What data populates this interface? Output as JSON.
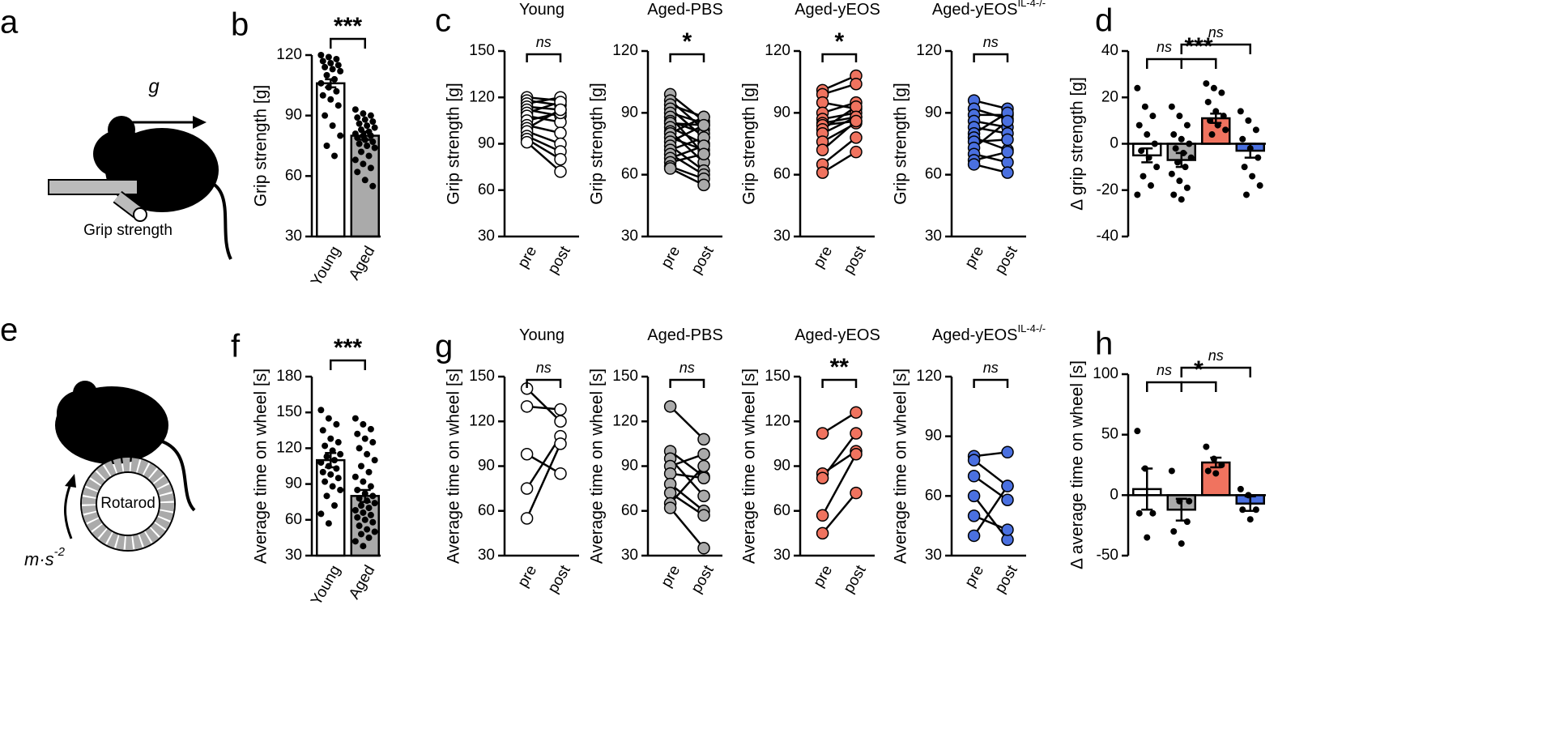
{
  "illustrations": {
    "grip": {
      "panel": "a",
      "caption": "Grip strength",
      "force_label": "g"
    },
    "rotarod": {
      "panel": "e",
      "device_label": "Rotarod",
      "speed_label": "m·s",
      "speed_exponent": "-2"
    }
  },
  "chart_data": [
    {
      "type": "bar",
      "panel": "b",
      "ylabel": "Grip strength [g]",
      "categories": [
        "Young",
        "Aged"
      ],
      "values": [
        106,
        80
      ],
      "errors": [
        2,
        2
      ],
      "colors": [
        "#ffffff",
        "#aaaaaa"
      ],
      "points": [
        [
          120,
          119,
          118,
          117,
          116,
          115,
          114,
          113,
          112,
          110,
          108,
          106,
          104,
          102,
          100,
          98,
          95,
          90,
          85,
          80,
          75,
          70
        ],
        [
          93,
          91,
          90,
          89,
          88,
          87,
          86,
          85,
          84,
          83,
          82,
          81,
          80,
          80,
          79,
          78,
          77,
          76,
          75,
          74,
          72,
          70,
          68,
          66,
          64,
          62,
          58,
          55
        ]
      ],
      "ylim": [
        30,
        120
      ],
      "yticks": [
        30,
        60,
        90,
        120
      ],
      "significance": [
        {
          "groups": [
            0,
            1
          ],
          "label": "***"
        }
      ]
    },
    {
      "type": "paired",
      "panel": "c",
      "title": "Young",
      "ylabel": "Grip strength [g]",
      "categories": [
        "pre",
        "post"
      ],
      "color": "#ffffff",
      "values": [
        [
          120,
          118
        ],
        [
          118,
          115
        ],
        [
          116,
          120
        ],
        [
          114,
          112
        ],
        [
          112,
          108
        ],
        [
          110,
          117
        ],
        [
          108,
          104
        ],
        [
          105,
          110
        ],
        [
          102,
          97
        ],
        [
          100,
          112
        ],
        [
          98,
          90
        ],
        [
          95,
          85
        ],
        [
          93,
          80
        ],
        [
          91,
          72
        ]
      ],
      "ylim": [
        30,
        150
      ],
      "yticks": [
        30,
        60,
        90,
        120,
        150
      ],
      "significance": [
        {
          "groups": [
            0,
            1
          ],
          "label": "ns"
        }
      ]
    },
    {
      "type": "paired",
      "title": "Aged-PBS",
      "ylabel": "Grip strength [g]",
      "categories": [
        "pre",
        "post"
      ],
      "color": "#aaaaaa",
      "values": [
        [
          99,
          86
        ],
        [
          96,
          82
        ],
        [
          94,
          88
        ],
        [
          92,
          78
        ],
        [
          90,
          85
        ],
        [
          88,
          70
        ],
        [
          86,
          80
        ],
        [
          85,
          84
        ],
        [
          83,
          75
        ],
        [
          81,
          66
        ],
        [
          80,
          88
        ],
        [
          78,
          72
        ],
        [
          76,
          84
        ],
        [
          74,
          62
        ],
        [
          72,
          78
        ],
        [
          70,
          60
        ],
        [
          68,
          74
        ],
        [
          66,
          70
        ],
        [
          64,
          58
        ],
        [
          63,
          55
        ]
      ],
      "ylim": [
        30,
        120
      ],
      "yticks": [
        30,
        60,
        90,
        120
      ],
      "significance": [
        {
          "groups": [
            0,
            1
          ],
          "label": "*"
        }
      ]
    },
    {
      "type": "paired",
      "title": "Aged-yEOS",
      "ylabel": "Grip strength [g]",
      "categories": [
        "pre",
        "post"
      ],
      "color": "#f0735f",
      "values": [
        [
          101,
          108
        ],
        [
          99,
          104
        ],
        [
          95,
          92
        ],
        [
          90,
          95
        ],
        [
          87,
          90
        ],
        [
          85,
          88
        ],
        [
          84,
          86
        ],
        [
          82,
          93
        ],
        [
          80,
          88
        ],
        [
          76,
          85
        ],
        [
          72,
          86
        ],
        [
          65,
          78
        ],
        [
          61,
          71
        ]
      ],
      "ylim": [
        30,
        120
      ],
      "yticks": [
        30,
        60,
        90,
        120
      ],
      "significance": [
        {
          "groups": [
            0,
            1
          ],
          "label": "*"
        }
      ]
    },
    {
      "type": "paired",
      "title": "Aged-yEOS",
      "title_superscript": "IL-4-/-",
      "ylabel": "Grip strength [g]",
      "categories": [
        "pre",
        "post"
      ],
      "color": "#4a70e0",
      "values": [
        [
          96,
          92
        ],
        [
          92,
          87
        ],
        [
          89,
          89
        ],
        [
          86,
          83
        ],
        [
          83,
          80
        ],
        [
          80,
          90
        ],
        [
          78,
          72
        ],
        [
          76,
          77
        ],
        [
          73,
          86
        ],
        [
          70,
          66
        ],
        [
          67,
          71
        ],
        [
          65,
          61
        ]
      ],
      "ylim": [
        30,
        120
      ],
      "yticks": [
        30,
        60,
        90,
        120
      ],
      "significance": [
        {
          "groups": [
            0,
            1
          ],
          "label": "ns"
        }
      ]
    },
    {
      "type": "bar",
      "panel": "d",
      "ylabel": "Δ grip strength [g]",
      "values": [
        -5,
        -7,
        11,
        -3
      ],
      "errors": [
        3,
        3,
        2,
        3
      ],
      "colors": [
        "#ffffff",
        "#aaaaaa",
        "#f0735f",
        "#4a70e0"
      ],
      "points": [
        [
          24,
          16,
          12,
          8,
          4,
          0,
          -3,
          -6,
          -10,
          -14,
          -18,
          -22
        ],
        [
          16,
          12,
          8,
          4,
          2,
          0,
          -2,
          -4,
          -6,
          -8,
          -10,
          -13,
          -16,
          -19,
          -22,
          -24
        ],
        [
          26,
          24,
          22,
          18,
          14,
          12,
          10,
          8,
          6,
          4
        ],
        [
          14,
          10,
          6,
          2,
          -2,
          -6,
          -10,
          -14,
          -18,
          -22
        ]
      ],
      "ylim": [
        -40,
        40
      ],
      "yticks": [
        -40,
        -20,
        0,
        20,
        40
      ],
      "significance": [
        {
          "groups": [
            0,
            1
          ],
          "label": "ns"
        },
        {
          "groups": [
            1,
            2
          ],
          "label": "***"
        },
        {
          "groups": [
            1,
            3
          ],
          "label": "ns"
        }
      ]
    },
    {
      "type": "bar",
      "panel": "f",
      "ylabel": "Average time on wheel [s]",
      "categories": [
        "Young",
        "Aged"
      ],
      "values": [
        110,
        80
      ],
      "errors": [
        6,
        5
      ],
      "colors": [
        "#ffffff",
        "#aaaaaa"
      ],
      "points": [
        [
          152,
          145,
          140,
          135,
          128,
          125,
          122,
          118,
          115,
          113,
          110,
          108,
          105,
          103,
          100,
          98,
          95,
          92,
          88,
          85,
          80,
          72,
          65,
          57
        ],
        [
          145,
          140,
          136,
          132,
          128,
          125,
          120,
          115,
          110,
          105,
          100,
          96,
          92,
          88,
          85,
          82,
          80,
          78,
          76,
          74,
          72,
          70,
          68,
          66,
          64,
          62,
          60,
          58,
          55,
          52,
          50,
          48,
          45,
          42,
          38
        ]
      ],
      "ylim": [
        30,
        180
      ],
      "yticks": [
        30,
        60,
        90,
        120,
        150,
        180
      ],
      "significance": [
        {
          "groups": [
            0,
            1
          ],
          "label": "***"
        }
      ]
    },
    {
      "type": "paired",
      "panel": "g",
      "title": "Young",
      "ylabel": "Average time on wheel [s]",
      "categories": [
        "pre",
        "post"
      ],
      "color": "#ffffff",
      "values": [
        [
          142,
          120
        ],
        [
          130,
          128
        ],
        [
          98,
          85
        ],
        [
          75,
          110
        ],
        [
          55,
          105
        ]
      ],
      "ylim": [
        30,
        150
      ],
      "yticks": [
        30,
        60,
        90,
        120,
        150
      ],
      "significance": [
        {
          "groups": [
            0,
            1
          ],
          "label": "ns"
        }
      ]
    },
    {
      "type": "paired",
      "title": "Aged-PBS",
      "ylabel": "Average time on wheel [s]",
      "categories": [
        "pre",
        "post"
      ],
      "color": "#aaaaaa",
      "values": [
        [
          130,
          108
        ],
        [
          100,
          83
        ],
        [
          95,
          70
        ],
        [
          90,
          98
        ],
        [
          85,
          82
        ],
        [
          78,
          60
        ],
        [
          72,
          57
        ],
        [
          65,
          90
        ],
        [
          62,
          35
        ]
      ],
      "ylim": [
        30,
        150
      ],
      "yticks": [
        30,
        60,
        90,
        120,
        150
      ],
      "significance": [
        {
          "groups": [
            0,
            1
          ],
          "label": "ns"
        }
      ]
    },
    {
      "type": "paired",
      "title": "Aged-yEOS",
      "ylabel": "Average time on wheel [s]",
      "categories": [
        "pre",
        "post"
      ],
      "color": "#f0735f",
      "values": [
        [
          112,
          126
        ],
        [
          85,
          100
        ],
        [
          82,
          112
        ],
        [
          57,
          98
        ],
        [
          45,
          72
        ]
      ],
      "ylim": [
        30,
        150
      ],
      "yticks": [
        30,
        60,
        90,
        120,
        150
      ],
      "significance": [
        {
          "groups": [
            0,
            1
          ],
          "label": "**"
        }
      ]
    },
    {
      "type": "paired",
      "title": "Aged-yEOS",
      "title_superscript": "IL-4-/-",
      "ylabel": "Average time on wheel [s]",
      "categories": [
        "pre",
        "post"
      ],
      "color": "#4a70e0",
      "values": [
        [
          80,
          82
        ],
        [
          78,
          65
        ],
        [
          70,
          58
        ],
        [
          60,
          38
        ],
        [
          50,
          43
        ],
        [
          40,
          65
        ]
      ],
      "ylim": [
        30,
        120
      ],
      "yticks": [
        30,
        60,
        90,
        120
      ],
      "significance": [
        {
          "groups": [
            0,
            1
          ],
          "label": "ns"
        }
      ]
    },
    {
      "type": "bar",
      "panel": "h",
      "ylabel": "Δ average time on wheel [s]",
      "values": [
        5,
        -12,
        27,
        -7
      ],
      "errors": [
        17,
        9,
        4,
        6
      ],
      "colors": [
        "#ffffff",
        "#aaaaaa",
        "#f0735f",
        "#4a70e0"
      ],
      "points": [
        [
          53,
          22,
          -15,
          -15,
          -35
        ],
        [
          20,
          -5,
          -22,
          -30,
          -40,
          -5
        ],
        [
          40,
          30,
          25,
          20,
          18
        ],
        [
          5,
          0,
          -12,
          -12,
          -20
        ]
      ],
      "ylim": [
        -50,
        100
      ],
      "yticks": [
        -50,
        0,
        50,
        100
      ],
      "significance": [
        {
          "groups": [
            0,
            1
          ],
          "label": "ns"
        },
        {
          "groups": [
            1,
            2
          ],
          "label": "*"
        },
        {
          "groups": [
            1,
            3
          ],
          "label": "ns"
        }
      ]
    }
  ]
}
